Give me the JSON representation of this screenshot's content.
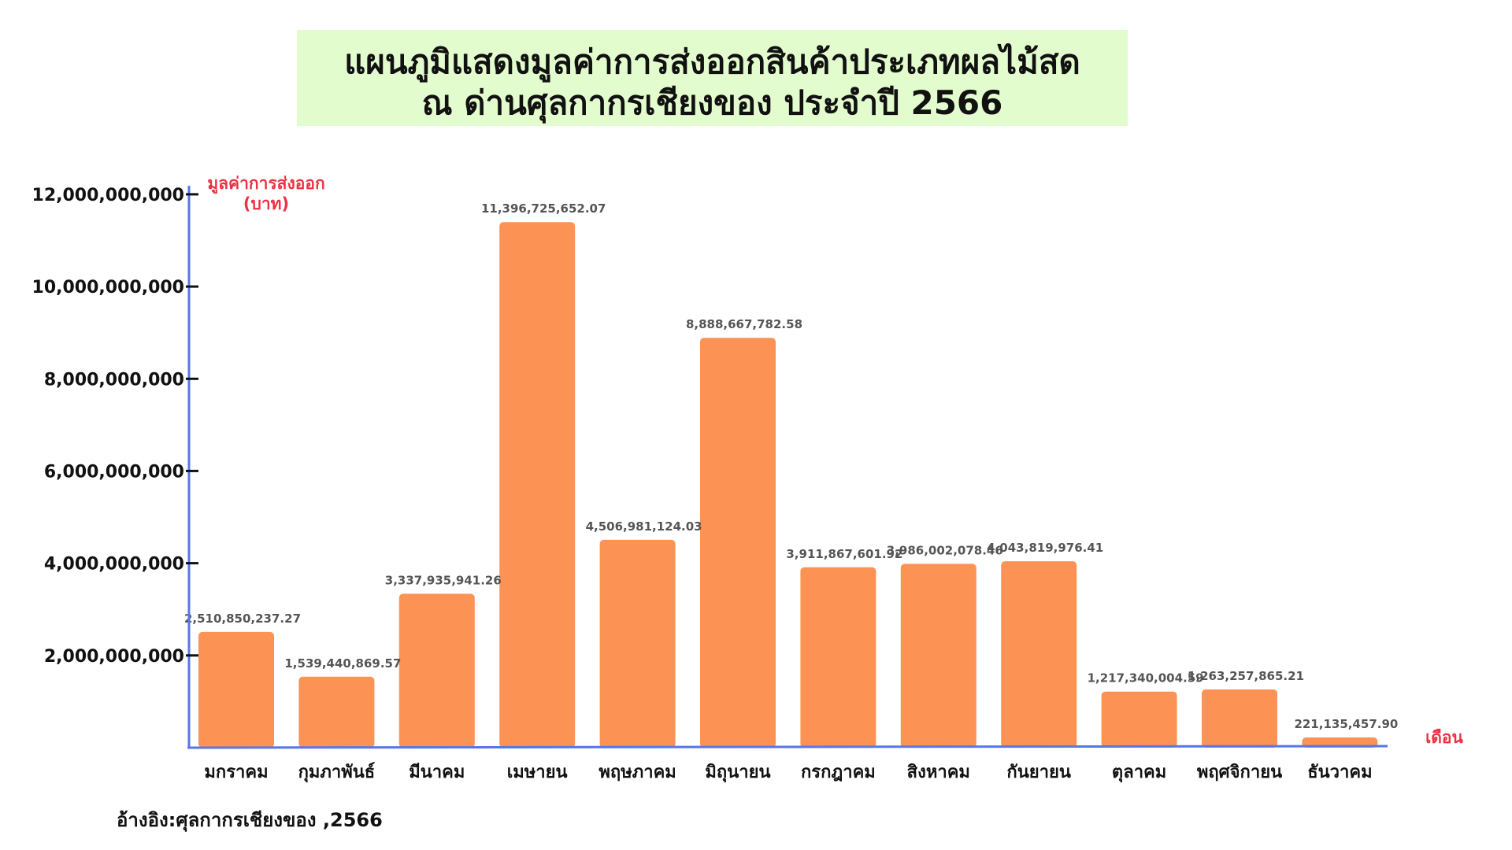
{
  "title": {
    "line1": "แผนภูมิแสดงมูลค่าการส่งออกสินค้าประเภทผลไม้สด",
    "line2": "ณ ด่านศุลกากรเชียงของ ประจำปี 2566"
  },
  "source_note": "อ้างอิง:ศุลกากรเชียงของ ,2566",
  "colors": {
    "bar": "#fc9355",
    "axis": "#5876e6",
    "axis_title": "#ee3042",
    "title_background": "#e3fcce"
  },
  "chart_data": {
    "type": "bar",
    "ylabel_line1": "มูลค่าการส่งออก",
    "ylabel_line2": "(บาท)",
    "xlabel": "เดือน",
    "categories": [
      "มกราคม",
      "กุมภาพันธ์",
      "มีนาคม",
      "เมษายน",
      "พฤษภาคม",
      "มิถุนายน",
      "กรกฎาคม",
      "สิงหาคม",
      "กันยายน",
      "ตุลาคม",
      "พฤศจิกายน",
      "ธันวาคม"
    ],
    "values": [
      2510850237.27,
      1539440869.57,
      3337935941.26,
      11396725652.07,
      4506981124.03,
      8888667782.58,
      3911867601.92,
      3986002078.46,
      4043819976.41,
      1217340004.59,
      1263257865.21,
      221135457.9
    ],
    "value_labels": [
      "2,510,850,237.27",
      "1,539,440,869.57",
      "3,337,935,941.26",
      "11,396,725,652.07",
      "4,506,981,124.03",
      "8,888,667,782.58",
      "3,911,867,601.92",
      "3,986,002,078.46",
      "4,043,819,976.41",
      "1,217,340,004.59",
      "1,263,257,865.21",
      "221,135,457.90"
    ],
    "yticks": [
      2000000000,
      4000000000,
      6000000000,
      8000000000,
      10000000000,
      12000000000
    ],
    "ytick_labels": [
      "2,000,000,000",
      "4,000,000,000",
      "6,000,000,000",
      "8,000,000,000",
      "10,000,000,000",
      "12,000,000,000"
    ],
    "ylim": [
      0,
      12800000000
    ],
    "grid": false,
    "legend": "none"
  }
}
